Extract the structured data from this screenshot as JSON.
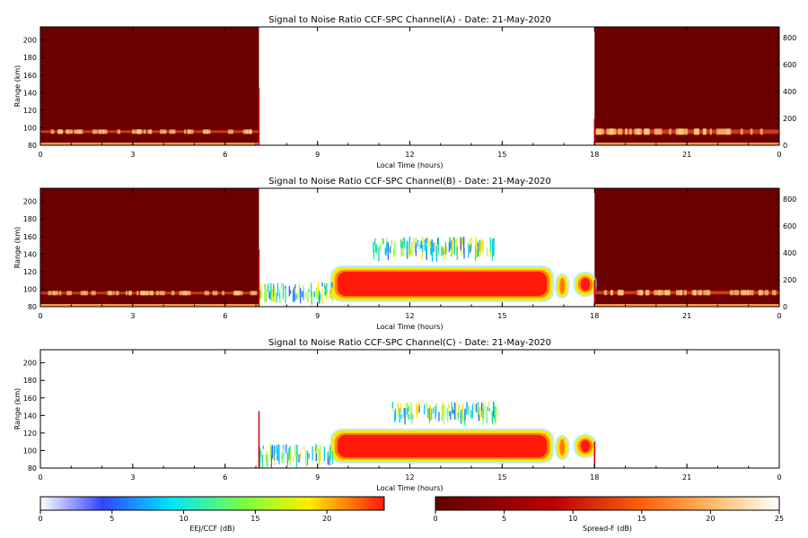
{
  "chart_data": [
    {
      "type": "heatmap",
      "title": "Signal to Noise Ratio CCF-SPC Channel(A) - Date: 21-May-2020",
      "xlabel": "Local Time (hours)",
      "ylabel": "Range (km)",
      "xlim": [
        0,
        24
      ],
      "ylim": [
        80,
        215
      ],
      "x_ticks": [
        "0",
        "3",
        "6",
        "9",
        "12",
        "15",
        "18",
        "21",
        "0"
      ],
      "y_ticks": [
        "80",
        "100",
        "120",
        "140",
        "160",
        "180",
        "200"
      ],
      "y2_ticks": [
        "0",
        "200",
        "400",
        "600",
        "800"
      ],
      "y2lim": [
        0,
        880
      ],
      "spread_f_blocks": [
        {
          "t_start": 0,
          "t_end": 7.1,
          "echo_band_km": [
            94,
            97
          ]
        },
        {
          "t_start": 18,
          "t_end": 24,
          "echo_band_km": [
            93,
            98
          ]
        }
      ],
      "eej_regions": []
    },
    {
      "type": "heatmap",
      "title": "Signal to Noise Ratio CCF-SPC Channel(B) - Date: 21-May-2020",
      "xlabel": "Local Time (hours)",
      "ylabel": "Range (km)",
      "xlim": [
        0,
        24
      ],
      "ylim": [
        80,
        215
      ],
      "x_ticks": [
        "0",
        "3",
        "6",
        "9",
        "12",
        "15",
        "18",
        "21",
        "0"
      ],
      "y_ticks": [
        "80",
        "100",
        "120",
        "140",
        "160",
        "180",
        "200"
      ],
      "y2_ticks": [
        "0",
        "200",
        "400",
        "600",
        "800"
      ],
      "y2lim": [
        0,
        880
      ],
      "spread_f_blocks": [
        {
          "t_start": 0,
          "t_end": 7.1,
          "echo_band_km": [
            94,
            97
          ]
        },
        {
          "t_start": 18,
          "t_end": 24,
          "echo_band_km": [
            94,
            98
          ]
        }
      ],
      "eej_regions": [
        {
          "t_start": 9.5,
          "t_end": 16.6,
          "range_km": [
            88,
            124
          ],
          "snr_db": 24
        },
        {
          "t_start": 16.8,
          "t_end": 17.1,
          "range_km": [
            92,
            115
          ],
          "snr_db": 24
        },
        {
          "t_start": 17.4,
          "t_end": 18.0,
          "range_km": [
            94,
            117
          ],
          "snr_db": 22
        },
        {
          "t_start": 10.8,
          "t_end": 14.8,
          "range_km": [
            140,
            160
          ],
          "snr_db": 12
        },
        {
          "t_start": 7.1,
          "t_end": 9.5,
          "range_km": [
            90,
            108
          ],
          "snr_db": 8
        }
      ]
    },
    {
      "type": "heatmap",
      "title": "Signal to Noise Ratio CCF-SPC Channel(C) - Date: 21-May-2020",
      "xlabel": "Local Time (hours)",
      "ylabel": "Range (km)",
      "xlim": [
        0,
        24
      ],
      "ylim": [
        80,
        215
      ],
      "x_ticks": [
        "0",
        "3",
        "6",
        "9",
        "12",
        "15",
        "18",
        "21",
        "0"
      ],
      "y_ticks": [
        "80",
        "100",
        "120",
        "140",
        "160",
        "180",
        "200"
      ],
      "spread_f_blocks": [],
      "eej_regions": [
        {
          "t_start": 9.5,
          "t_end": 16.6,
          "range_km": [
            88,
            122
          ],
          "snr_db": 24
        },
        {
          "t_start": 16.8,
          "t_end": 17.1,
          "range_km": [
            92,
            115
          ],
          "snr_db": 24
        },
        {
          "t_start": 17.4,
          "t_end": 18.0,
          "range_km": [
            94,
            116
          ],
          "snr_db": 22
        },
        {
          "t_start": 11.4,
          "t_end": 14.8,
          "range_km": [
            136,
            156
          ],
          "snr_db": 10
        },
        {
          "t_start": 7.1,
          "t_end": 9.5,
          "range_km": [
            88,
            108
          ],
          "snr_db": 8
        }
      ]
    }
  ],
  "colorbars": [
    {
      "label": "EEJ/CCF (dB)",
      "ticks": [
        "0",
        "5",
        "10",
        "15",
        "20"
      ],
      "range": [
        0,
        24
      ]
    },
    {
      "label": "Spread-F (dB)",
      "ticks": [
        "0",
        "5",
        "10",
        "15",
        "20",
        "25"
      ],
      "range": [
        0,
        25
      ]
    }
  ],
  "colors": {
    "spread_f_background": "#6b0000",
    "spread_f_band": "#e0401a",
    "eej_core": "#ff1a0a",
    "eej_edge": "#ffe600"
  }
}
